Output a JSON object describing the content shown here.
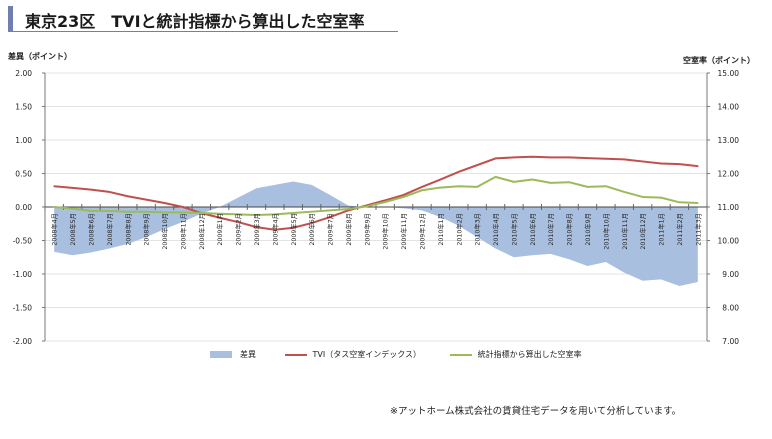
{
  "title": "東京23区　TVIと統計指標から算出した空室率",
  "footnote": "※アットホーム株式会社の賃貸住宅データを用いて分析しています。",
  "colors": {
    "diff": "#a9bfdf",
    "tvi": "#c0504d",
    "stat": "#9bbb59",
    "title_accent": "#6f7fb0"
  },
  "chart_data": {
    "type": "line",
    "left_axis": {
      "label": "差異（ポイント）",
      "range": [
        -2.0,
        2.0
      ],
      "ticks": [
        "2.00",
        "1.50",
        "1.00",
        "0.50",
        "0.00",
        "-0.50",
        "-1.00",
        "-1.50",
        "-2.00"
      ]
    },
    "right_axis": {
      "label": "空室率（ポイント）",
      "range": [
        7.0,
        15.0
      ],
      "ticks": [
        "15.00",
        "14.00",
        "13.00",
        "12.00",
        "11.00",
        "10.00",
        "9.00",
        "8.00",
        "7.00"
      ]
    },
    "categories": [
      "2008年4月",
      "2008年5月",
      "2008年6月",
      "2008年7月",
      "2008年8月",
      "2008年9月",
      "2008年10月",
      "2008年11月",
      "2008年12月",
      "2009年1月",
      "2009年2月",
      "2009年3月",
      "2009年4月",
      "2009年5月",
      "2009年6月",
      "2009年7月",
      "2009年8月",
      "2009年9月",
      "2009年10月",
      "2009年11月",
      "2009年12月",
      "2010年1月",
      "2010年2月",
      "2010年3月",
      "2010年4月",
      "2010年5月",
      "2010年6月",
      "2010年7月",
      "2010年8月",
      "2010年9月",
      "2010年10月",
      "2010年11月",
      "2010年12月",
      "2011年1月",
      "2011年2月",
      "2011年3月"
    ],
    "series": [
      {
        "name": "差異",
        "type": "area",
        "axis": "left",
        "values": [
          -0.67,
          -0.72,
          -0.68,
          -0.62,
          -0.55,
          -0.45,
          -0.33,
          -0.22,
          -0.1,
          0.0,
          0.14,
          0.28,
          0.33,
          0.38,
          0.33,
          0.18,
          0.02,
          0.0,
          0.0,
          -0.02,
          -0.05,
          -0.15,
          -0.28,
          -0.45,
          -0.62,
          -0.75,
          -0.72,
          -0.7,
          -0.78,
          -0.88,
          -0.82,
          -0.98,
          -1.1,
          -1.08,
          -1.18,
          -1.12
        ]
      },
      {
        "name": "TVI（タス空室インデックス）",
        "type": "line",
        "axis": "right",
        "values": [
          11.62,
          11.57,
          11.52,
          11.45,
          11.32,
          11.22,
          11.12,
          11.0,
          10.82,
          10.68,
          10.55,
          10.4,
          10.32,
          10.38,
          10.52,
          10.7,
          10.9,
          11.05,
          11.2,
          11.36,
          11.6,
          11.82,
          12.05,
          12.25,
          12.45,
          12.48,
          12.5,
          12.48,
          12.48,
          12.46,
          12.44,
          12.42,
          12.36,
          12.3,
          12.28,
          12.22
        ]
      },
      {
        "name": "統計指標から算出した空室率",
        "type": "line",
        "axis": "right",
        "values": [
          11.0,
          10.95,
          10.88,
          10.88,
          10.86,
          10.86,
          10.84,
          10.84,
          10.82,
          10.8,
          10.78,
          10.76,
          10.78,
          10.82,
          10.86,
          10.9,
          10.94,
          11.02,
          11.15,
          11.3,
          11.5,
          11.58,
          11.62,
          11.6,
          11.9,
          11.75,
          11.82,
          11.72,
          11.74,
          11.6,
          11.62,
          11.45,
          11.3,
          11.28,
          11.14,
          11.12
        ]
      }
    ]
  }
}
